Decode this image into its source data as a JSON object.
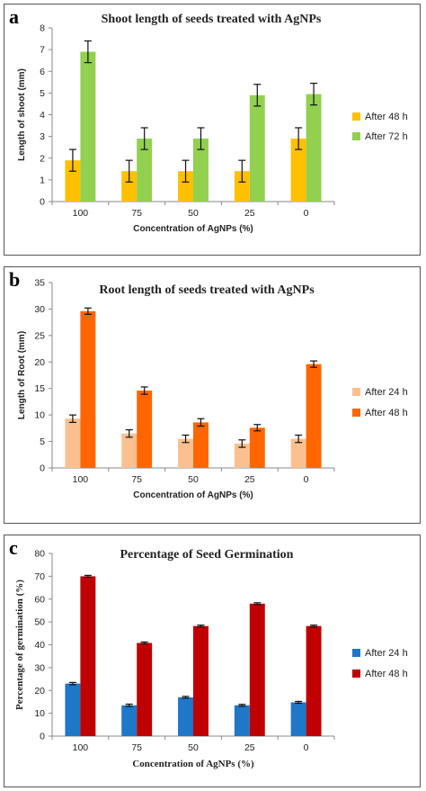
{
  "chart_data": [
    {
      "letter": "a",
      "type": "bar",
      "title": "Shoot length  of seeds treated with  AgNPs",
      "xlabel": "Concentration of AgNPs (%)",
      "ylabel": "Length of shoot (mm)",
      "ylim": [
        0,
        8
      ],
      "yticks": [
        0,
        1,
        2,
        3,
        4,
        5,
        6,
        7,
        8
      ],
      "categories": [
        "100",
        "75",
        "50",
        "25",
        "0"
      ],
      "legend_position": "right",
      "grid": false,
      "series": [
        {
          "name": "After 48 h",
          "color": "#FFC000",
          "values": [
            1.9,
            1.4,
            1.4,
            1.4,
            2.9
          ],
          "errors": [
            0.5,
            0.5,
            0.5,
            0.5,
            0.5
          ]
        },
        {
          "name": "After 72 h",
          "color": "#92D050",
          "values": [
            6.9,
            2.9,
            2.9,
            4.9,
            4.95
          ],
          "errors": [
            0.5,
            0.5,
            0.5,
            0.5,
            0.5
          ]
        }
      ]
    },
    {
      "letter": "b",
      "type": "bar",
      "title": "Root length  of seeds treated with  AgNPs",
      "xlabel": "Concentration of AgNPs (%)",
      "ylabel": "Length of Root (mm)",
      "ylim": [
        0,
        35
      ],
      "yticks": [
        0,
        5,
        10,
        15,
        20,
        25,
        30,
        35
      ],
      "categories": [
        "100",
        "75",
        "50",
        "25",
        "0"
      ],
      "legend_position": "right",
      "grid": false,
      "series": [
        {
          "name": "After 24 h",
          "color": "#FAC090",
          "values": [
            9.3,
            6.5,
            5.5,
            4.6,
            5.5
          ],
          "errors": [
            0.7,
            0.7,
            0.7,
            0.7,
            0.7
          ]
        },
        {
          "name": "After 48 h",
          "color": "#FF6600",
          "values": [
            29.6,
            14.6,
            8.6,
            7.6,
            19.6
          ],
          "errors": [
            0.6,
            0.7,
            0.7,
            0.6,
            0.6
          ]
        }
      ]
    },
    {
      "letter": "c",
      "type": "bar",
      "title": "Percentage of Seed Germination",
      "xlabel": "Concentration  of AgNPs (%)",
      "ylabel": "Percentage of germination (%)",
      "ylim": [
        0,
        80
      ],
      "yticks": [
        0,
        10,
        20,
        30,
        40,
        50,
        60,
        70,
        80
      ],
      "categories": [
        "100",
        "75",
        "50",
        "25",
        "0"
      ],
      "legend_position": "right",
      "grid": false,
      "series": [
        {
          "name": "After 24 h",
          "color": "#1F77C8",
          "values": [
            23,
            13.5,
            17,
            13.5,
            14.8
          ],
          "errors": [
            0.5,
            0.5,
            0.4,
            0.4,
            0.4
          ]
        },
        {
          "name": "After 48 h",
          "color": "#C00000",
          "values": [
            70,
            40.8,
            48.2,
            58,
            48.2
          ],
          "errors": [
            0.4,
            0.4,
            0.4,
            0.4,
            0.4
          ]
        }
      ]
    }
  ]
}
